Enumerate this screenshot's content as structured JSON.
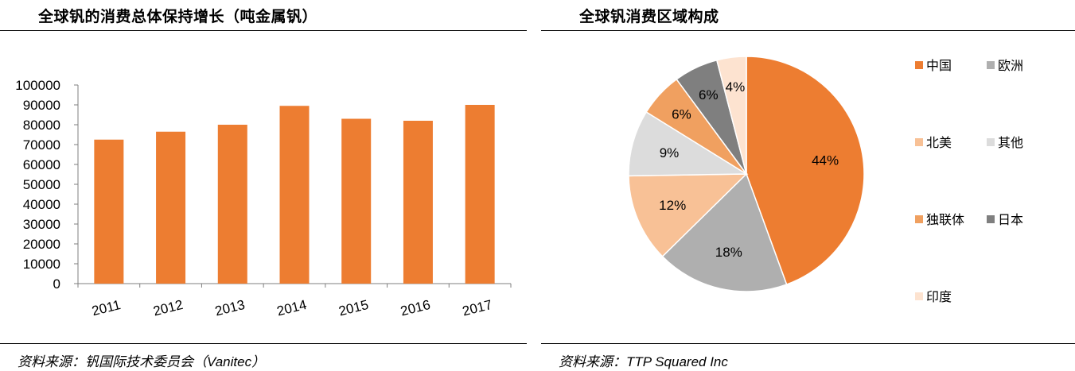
{
  "left": {
    "title": "全球钒的消费总体保持增长（吨金属钒）",
    "source": "资料来源：钒国际技术委员会（Vanitec）"
  },
  "right": {
    "title": "全球钒消费区域构成",
    "source": "资料来源：TTP Squared Inc"
  },
  "chart_data": [
    {
      "type": "bar",
      "title": "全球钒的消费总体保持增长（吨金属钒）",
      "categories": [
        "2011",
        "2012",
        "2013",
        "2014",
        "2015",
        "2016",
        "2017"
      ],
      "values": [
        72500,
        76500,
        80000,
        89500,
        83000,
        82000,
        90000
      ],
      "ylim": [
        0,
        100000
      ],
      "yticks": [
        "0",
        "10000",
        "20000",
        "30000",
        "40000",
        "50000",
        "60000",
        "70000",
        "80000",
        "90000",
        "100000"
      ],
      "xlabel": "",
      "ylabel": "",
      "grid": false,
      "color": "#ed7d31"
    },
    {
      "type": "pie",
      "title": "全球钒消费区域构成",
      "labels": [
        "中国",
        "欧洲",
        "北美",
        "其他",
        "独联体",
        "日本",
        "印度"
      ],
      "values": [
        44,
        18,
        12,
        9,
        6,
        6,
        4
      ],
      "value_labels": [
        "44%",
        "18%",
        "12%",
        "9%",
        "6%",
        "6%",
        "4%"
      ],
      "colors": [
        "#ed7d31",
        "#afafaf",
        "#f8c196",
        "#dcdcdc",
        "#f0a060",
        "#7f7f7f",
        "#fde3d0"
      ],
      "legend_position": "right"
    }
  ]
}
